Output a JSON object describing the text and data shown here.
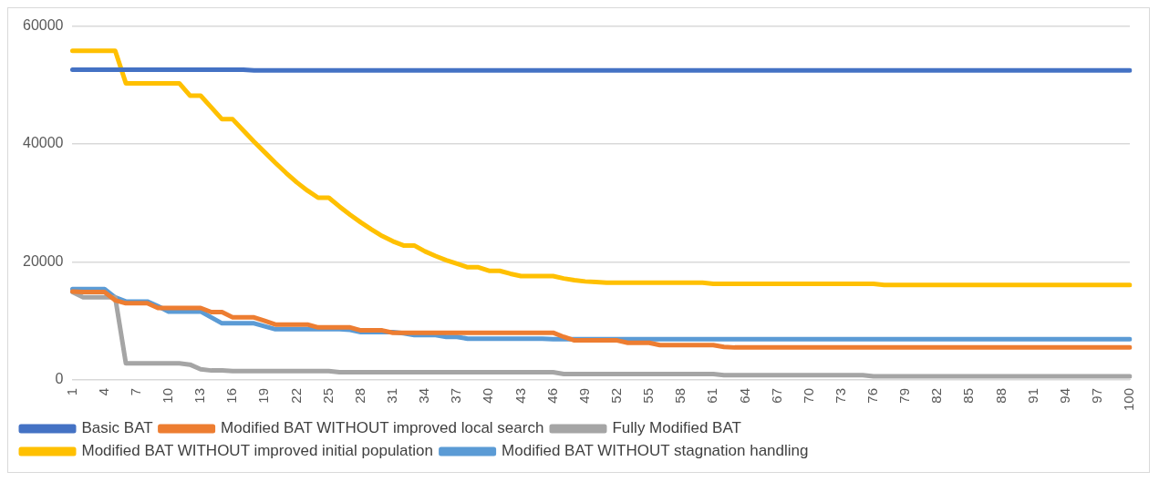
{
  "chart_data": {
    "type": "line",
    "categories": [
      "1",
      null,
      null,
      "4",
      null,
      null,
      "7",
      null,
      null,
      "10",
      null,
      null,
      "13",
      null,
      null,
      "16",
      null,
      null,
      "19",
      null,
      null,
      "22",
      null,
      null,
      "25",
      null,
      null,
      "28",
      null,
      null,
      "31",
      null,
      null,
      "34",
      null,
      null,
      "37",
      null,
      null,
      "40",
      null,
      null,
      "43",
      null,
      null,
      "46",
      null,
      null,
      "49",
      null,
      null,
      "52",
      null,
      null,
      "55",
      null,
      null,
      "58",
      null,
      null,
      "61",
      null,
      null,
      "64",
      null,
      null,
      "67",
      null,
      null,
      "70",
      null,
      null,
      "73",
      null,
      null,
      "76",
      null,
      null,
      "79",
      null,
      null,
      "82",
      null,
      null,
      "85",
      null,
      null,
      "88",
      null,
      null,
      "91",
      null,
      null,
      "94",
      null,
      null,
      "97",
      null,
      null,
      "100"
    ],
    "series": [
      {
        "name": "Basic BAT",
        "color": "#4472c4",
        "values": [
          52600,
          52600,
          52600,
          52600,
          52600,
          52600,
          52600,
          52600,
          52600,
          52600,
          52600,
          52600,
          52600,
          52600,
          52600,
          52600,
          52600,
          52500,
          52500,
          52500,
          52500,
          52500,
          52500,
          52500,
          52500,
          52500,
          52500,
          52500,
          52500,
          52500,
          52500,
          52500,
          52500,
          52500,
          52500,
          52500,
          52500,
          52500,
          52500,
          52500,
          52500,
          52500,
          52500,
          52500,
          52500,
          52500,
          52500,
          52500,
          52500,
          52500,
          52500,
          52500,
          52500,
          52500,
          52500,
          52500,
          52500,
          52500,
          52500,
          52500,
          52500,
          52500,
          52500,
          52500,
          52500,
          52500,
          52500,
          52500,
          52500,
          52500,
          52500,
          52500,
          52500,
          52500,
          52500,
          52500,
          52500,
          52500,
          52500,
          52500,
          52500,
          52500,
          52500,
          52500,
          52500,
          52500,
          52500,
          52500,
          52500,
          52500,
          52500,
          52500,
          52500,
          52500,
          52500,
          52500,
          52500,
          52500,
          52500,
          52500
        ]
      },
      {
        "name": "Modified BAT WITHOUT improved local search",
        "color": "#ed7d31",
        "values": [
          15000,
          14900,
          14900,
          14900,
          13500,
          13000,
          13000,
          13000,
          12200,
          12200,
          12200,
          12200,
          12200,
          11500,
          11500,
          10600,
          10600,
          10600,
          10000,
          9400,
          9400,
          9400,
          9400,
          8900,
          8900,
          8900,
          8900,
          8400,
          8400,
          8400,
          8000,
          8000,
          8000,
          8000,
          8000,
          8000,
          8000,
          8000,
          8000,
          8000,
          8000,
          8000,
          8000,
          8000,
          8000,
          8000,
          7300,
          6700,
          6700,
          6700,
          6700,
          6700,
          6300,
          6300,
          6300,
          5900,
          5900,
          5900,
          5900,
          5900,
          5900,
          5600,
          5500,
          5500,
          5500,
          5500,
          5500,
          5500,
          5500,
          5500,
          5500,
          5500,
          5500,
          5500,
          5500,
          5500,
          5500,
          5500,
          5500,
          5500,
          5500,
          5500,
          5500,
          5500,
          5500,
          5500,
          5500,
          5500,
          5500,
          5500,
          5500,
          5500,
          5500,
          5500,
          5500,
          5500,
          5500,
          5500,
          5500,
          5500
        ]
      },
      {
        "name": "Fully Modified BAT",
        "color": "#a5a5a5",
        "values": [
          14900,
          14000,
          14000,
          14000,
          14000,
          2800,
          2800,
          2800,
          2800,
          2800,
          2800,
          2600,
          1800,
          1600,
          1600,
          1500,
          1500,
          1500,
          1500,
          1500,
          1500,
          1500,
          1500,
          1500,
          1500,
          1300,
          1300,
          1300,
          1300,
          1300,
          1300,
          1300,
          1300,
          1300,
          1300,
          1300,
          1300,
          1300,
          1300,
          1300,
          1300,
          1300,
          1300,
          1300,
          1300,
          1300,
          1000,
          1000,
          1000,
          1000,
          1000,
          1000,
          1000,
          1000,
          1000,
          1000,
          1000,
          1000,
          1000,
          1000,
          1000,
          800,
          800,
          800,
          800,
          800,
          800,
          800,
          800,
          800,
          800,
          800,
          800,
          800,
          800,
          600,
          600,
          600,
          600,
          600,
          600,
          600,
          600,
          600,
          600,
          600,
          600,
          600,
          600,
          600,
          600,
          600,
          600,
          600,
          600,
          600,
          600,
          600,
          600,
          600
        ]
      },
      {
        "name": "Modified BAT WITHOUT improved initial population",
        "color": "#ffc000",
        "values": [
          55800,
          55800,
          55800,
          55800,
          55800,
          50300,
          50300,
          50300,
          50300,
          50300,
          50300,
          48200,
          48200,
          46200,
          44200,
          44200,
          42300,
          40400,
          38600,
          36800,
          35100,
          33500,
          32100,
          30900,
          30900,
          29400,
          28000,
          26700,
          25500,
          24400,
          23500,
          22800,
          22800,
          21800,
          21000,
          20300,
          19700,
          19100,
          19100,
          18500,
          18500,
          18000,
          17600,
          17600,
          17600,
          17600,
          17200,
          16900,
          16700,
          16600,
          16500,
          16500,
          16500,
          16500,
          16500,
          16500,
          16500,
          16500,
          16500,
          16500,
          16300,
          16300,
          16300,
          16300,
          16300,
          16300,
          16300,
          16300,
          16300,
          16300,
          16300,
          16300,
          16300,
          16300,
          16300,
          16300,
          16100,
          16100,
          16100,
          16100,
          16100,
          16100,
          16100,
          16100,
          16100,
          16100,
          16100,
          16100,
          16100,
          16100,
          16100,
          16100,
          16100,
          16100,
          16100,
          16100,
          16100,
          16100,
          16100,
          16100
        ]
      },
      {
        "name": "Modified BAT WITHOUT stagnation handling",
        "color": "#5b9bd5",
        "values": [
          15400,
          15400,
          15400,
          15400,
          14000,
          13300,
          13300,
          13300,
          12500,
          11600,
          11600,
          11600,
          11600,
          10600,
          9600,
          9600,
          9600,
          9600,
          9100,
          8600,
          8600,
          8600,
          8600,
          8600,
          8600,
          8600,
          8500,
          8100,
          8100,
          8100,
          8100,
          7900,
          7600,
          7600,
          7600,
          7300,
          7300,
          7000,
          7000,
          7000,
          7000,
          7000,
          7000,
          7000,
          7000,
          6900,
          6900,
          6900,
          6900,
          6900,
          6900,
          6900,
          6900,
          6900,
          6900,
          6900,
          6900,
          6900,
          6900,
          6900,
          6900,
          6900,
          6900,
          6900,
          6900,
          6900,
          6900,
          6900,
          6900,
          6900,
          6900,
          6900,
          6900,
          6900,
          6900,
          6900,
          6900,
          6900,
          6900,
          6900,
          6900,
          6900,
          6900,
          6900,
          6900,
          6900,
          6900,
          6900,
          6900,
          6900,
          6900,
          6900,
          6900,
          6900,
          6900,
          6900,
          6900,
          6900,
          6900,
          6900
        ]
      }
    ],
    "ylim": [
      0,
      60000
    ],
    "yticks": [
      0,
      20000,
      40000,
      60000
    ],
    "grid": "y",
    "legend": "bottom",
    "marker": "none",
    "line_style": "solid"
  }
}
